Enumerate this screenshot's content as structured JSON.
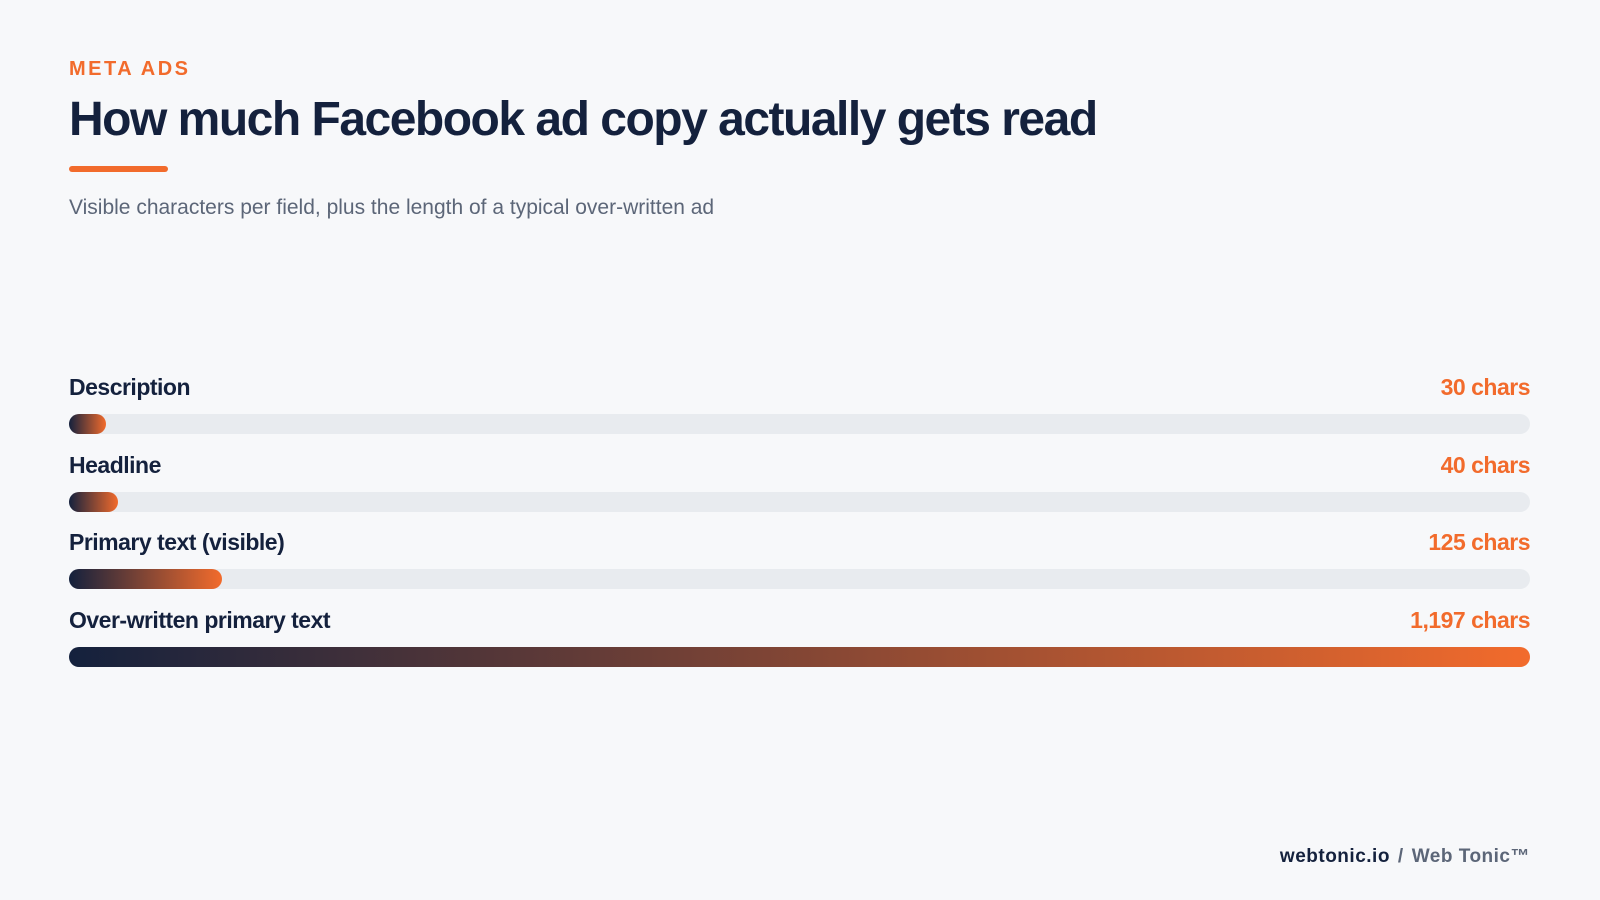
{
  "eyebrow": "META ADS",
  "chart_data": {
    "type": "bar",
    "title": "How much Facebook ad copy actually gets read",
    "subtitle": "Visible characters per field, plus the length of a typical over-written ad",
    "categories": [
      "Description",
      "Headline",
      "Primary text (visible)",
      "Over-written primary text"
    ],
    "values": [
      30,
      40,
      125,
      1197
    ],
    "value_labels": [
      "30 chars",
      "40 chars",
      "125 chars",
      "1,197 chars"
    ],
    "xlim": [
      0,
      1197
    ],
    "colors": [
      "#14213d",
      "#f26b2c"
    ]
  },
  "footer": {
    "site": "webtonic.io",
    "separator": "/",
    "brand": "Web Tonic™"
  }
}
